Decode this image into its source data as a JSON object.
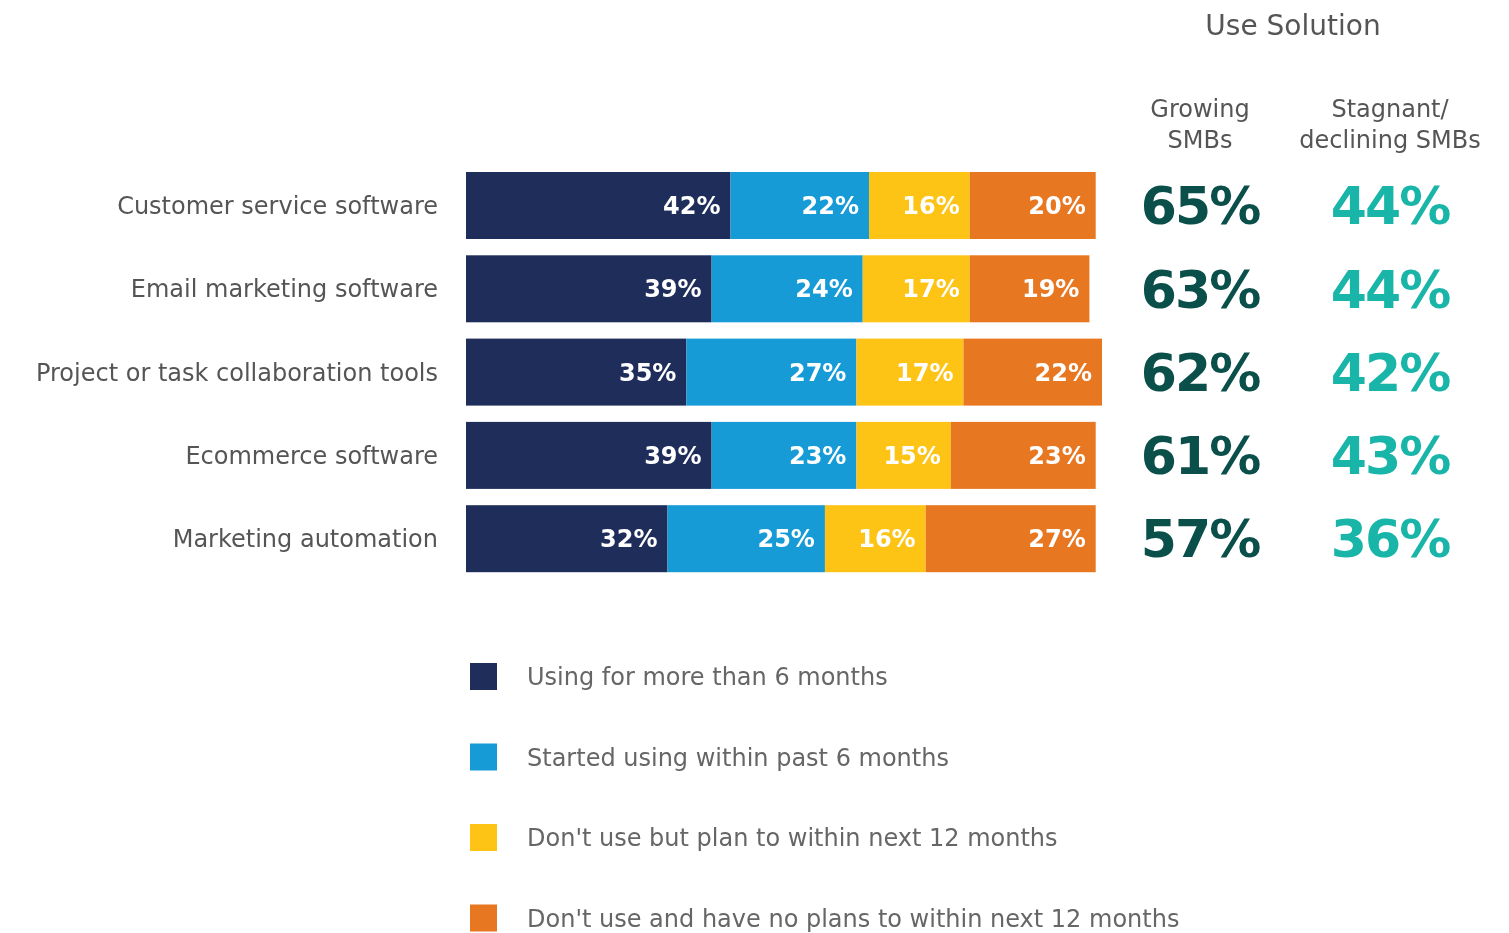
{
  "chart_data": [
    {
      "type": "bar",
      "orientation": "horizontal",
      "stacked": true,
      "legend": "bottom",
      "tick_labels": "y",
      "categories": [
        "Customer service software",
        "Email marketing software",
        "Project or task collaboration tools",
        "Ecommerce software",
        "Marketing automation"
      ],
      "series": [
        {
          "name": "Using for more than 6 months",
          "color": "#1f2d5a",
          "values": [
            42,
            39,
            35,
            39,
            32
          ],
          "value_labels": [
            "42%",
            "39%",
            "35%",
            "39%",
            "32%"
          ]
        },
        {
          "name": "Started using within past 6 months",
          "color": "#169bd7",
          "values": [
            22,
            24,
            27,
            23,
            25
          ],
          "value_labels": [
            "22%",
            "24%",
            "27%",
            "23%",
            "25%"
          ]
        },
        {
          "name": "Don't use but plan to within next 12 months",
          "color": "#fdc315",
          "values": [
            16,
            17,
            17,
            15,
            16
          ],
          "value_labels": [
            "16%",
            "17%",
            "17%",
            "15%",
            "16%"
          ]
        },
        {
          "name": "Don't use and have no plans to within next 12 months",
          "color": "#e87722",
          "values": [
            20,
            19,
            22,
            23,
            27
          ],
          "value_labels": [
            "20%",
            "19%",
            "22%",
            "23%",
            "27%"
          ]
        }
      ]
    },
    {
      "type": "heatmap",
      "title": "Use Solution",
      "categories": [
        "Growing SMBs",
        "Stagnant/ declining SMBs"
      ],
      "y_categories": [
        null,
        null,
        null,
        null,
        null
      ],
      "cells": [
        [
          65,
          44
        ],
        [
          63,
          44
        ],
        [
          62,
          42
        ],
        [
          61,
          43
        ],
        [
          57,
          36
        ]
      ],
      "cell_labels": [
        [
          "65%",
          "44%"
        ],
        [
          "63%",
          "44%"
        ],
        [
          "62%",
          "42%"
        ],
        [
          "61%",
          "43%"
        ],
        [
          "57%",
          "36%"
        ]
      ]
    }
  ]
}
